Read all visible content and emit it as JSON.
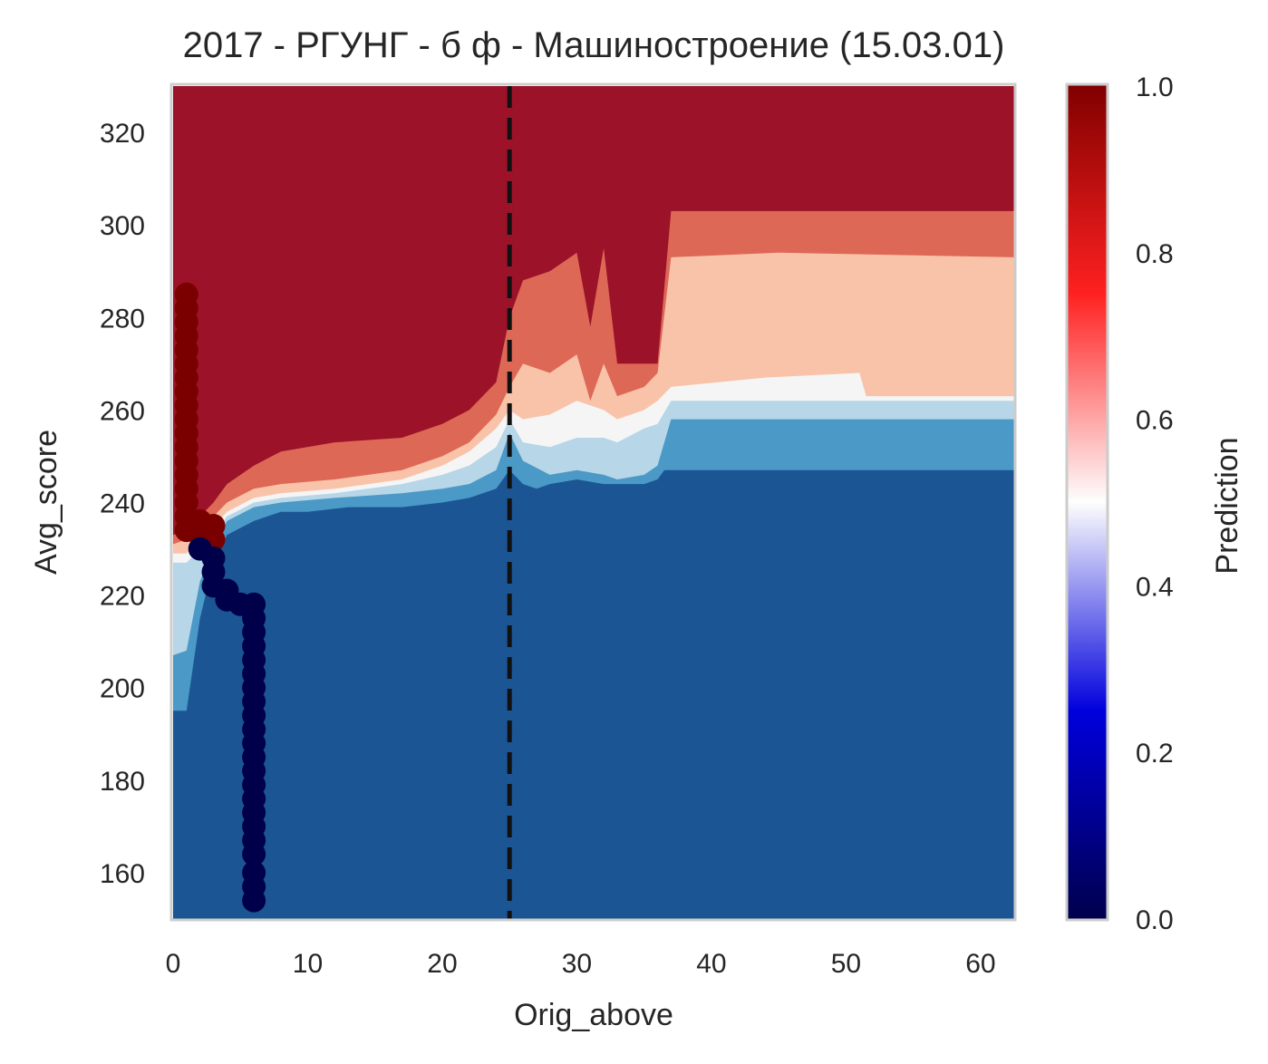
{
  "chart_data": {
    "type": "heatmap",
    "title": "2017 - РГУНГ - б ф - Машиностроение (15.03.01)",
    "xlabel": "Orig_above",
    "ylabel": "Avg_score",
    "xlim": [
      0,
      62.5
    ],
    "ylim": [
      150,
      330
    ],
    "x_ticks": [
      0,
      10,
      20,
      30,
      40,
      50,
      60
    ],
    "y_ticks": [
      160,
      180,
      200,
      220,
      240,
      260,
      280,
      300,
      320
    ],
    "colorbar": {
      "label": "Prediction",
      "colormap": "seismic",
      "range": [
        0,
        1
      ],
      "ticks": [
        "0.0",
        "0.2",
        "0.4",
        "0.6",
        "0.8",
        "1.0"
      ]
    },
    "contour_levels": [
      {
        "range": "0.0-0.15",
        "color": "#1b5594"
      },
      {
        "range": "0.15-0.3",
        "color": "#4a99c6"
      },
      {
        "range": "0.3-0.45",
        "color": "#b7d6e7"
      },
      {
        "range": "0.45-0.55",
        "color": "#f5f5f5"
      },
      {
        "range": "0.55-0.7",
        "color": "#f8c3a9"
      },
      {
        "range": "0.7-0.85",
        "color": "#dd6856"
      },
      {
        "range": "0.85-1.0",
        "color": "#9b1229"
      }
    ],
    "contour_boundaries": [
      {
        "level": 0.15,
        "points": [
          [
            0,
            195
          ],
          [
            1,
            195
          ],
          [
            2,
            215
          ],
          [
            3,
            227
          ],
          [
            4,
            233
          ],
          [
            6,
            236
          ],
          [
            8,
            238
          ],
          [
            10,
            238
          ],
          [
            13,
            239
          ],
          [
            17,
            239
          ],
          [
            20,
            240
          ],
          [
            22,
            241
          ],
          [
            24,
            243
          ],
          [
            25,
            247
          ],
          [
            26,
            244
          ],
          [
            27,
            243
          ],
          [
            28,
            244
          ],
          [
            30,
            245
          ],
          [
            32,
            244
          ],
          [
            33,
            244
          ],
          [
            35,
            244
          ],
          [
            36,
            245
          ],
          [
            36.5,
            247
          ],
          [
            62.5,
            247
          ]
        ]
      },
      {
        "level": 0.3,
        "points": [
          [
            0,
            207
          ],
          [
            1,
            208
          ],
          [
            2,
            223
          ],
          [
            3,
            230
          ],
          [
            4,
            236
          ],
          [
            6,
            239
          ],
          [
            8,
            240
          ],
          [
            12,
            241
          ],
          [
            17,
            242
          ],
          [
            20,
            243
          ],
          [
            22,
            244
          ],
          [
            24,
            247
          ],
          [
            25,
            255
          ],
          [
            26,
            249
          ],
          [
            28,
            246
          ],
          [
            30,
            247
          ],
          [
            32,
            246
          ],
          [
            33,
            245
          ],
          [
            35,
            246
          ],
          [
            36,
            248
          ],
          [
            37,
            258
          ],
          [
            62.5,
            258
          ]
        ]
      },
      {
        "level": 0.45,
        "points": [
          [
            0,
            227
          ],
          [
            1,
            227
          ],
          [
            2,
            230
          ],
          [
            3,
            233
          ],
          [
            4,
            237
          ],
          [
            6,
            240
          ],
          [
            8,
            241
          ],
          [
            12,
            242
          ],
          [
            17,
            244
          ],
          [
            20,
            246
          ],
          [
            22,
            248
          ],
          [
            24,
            252
          ],
          [
            25,
            258
          ],
          [
            26,
            253
          ],
          [
            28,
            252
          ],
          [
            30,
            254
          ],
          [
            32,
            254
          ],
          [
            33,
            253
          ],
          [
            35,
            256
          ],
          [
            36,
            257
          ],
          [
            37,
            262
          ],
          [
            62.5,
            262
          ]
        ]
      },
      {
        "level": 0.55,
        "points": [
          [
            0,
            229
          ],
          [
            1,
            229
          ],
          [
            2,
            232
          ],
          [
            3,
            235
          ],
          [
            4,
            238
          ],
          [
            6,
            241
          ],
          [
            8,
            242
          ],
          [
            12,
            243
          ],
          [
            17,
            245
          ],
          [
            20,
            248
          ],
          [
            22,
            251
          ],
          [
            24,
            256
          ],
          [
            25,
            260
          ],
          [
            26,
            258
          ],
          [
            28,
            259
          ],
          [
            30,
            262
          ],
          [
            32,
            260
          ],
          [
            33,
            258
          ],
          [
            35,
            260
          ],
          [
            36,
            262
          ],
          [
            37,
            265
          ],
          [
            44,
            267
          ],
          [
            51,
            268
          ],
          [
            51.5,
            263
          ],
          [
            62.5,
            263
          ]
        ]
      },
      {
        "level": 0.7,
        "points": [
          [
            0,
            231
          ],
          [
            1,
            232
          ],
          [
            2,
            234
          ],
          [
            3,
            237
          ],
          [
            4,
            240
          ],
          [
            6,
            243
          ],
          [
            8,
            244
          ],
          [
            12,
            245
          ],
          [
            17,
            247
          ],
          [
            20,
            250
          ],
          [
            22,
            253
          ],
          [
            24,
            259
          ],
          [
            25,
            265
          ],
          [
            26,
            270
          ],
          [
            28,
            268
          ],
          [
            30,
            272
          ],
          [
            31,
            262
          ],
          [
            32,
            270
          ],
          [
            33,
            263
          ],
          [
            35,
            265
          ],
          [
            36,
            268
          ],
          [
            37,
            293
          ],
          [
            45,
            294
          ],
          [
            62.5,
            293
          ]
        ]
      },
      {
        "level": 0.85,
        "points": [
          [
            0,
            233
          ],
          [
            1,
            234
          ],
          [
            2,
            237
          ],
          [
            3,
            240
          ],
          [
            4,
            244
          ],
          [
            6,
            248
          ],
          [
            8,
            251
          ],
          [
            12,
            253
          ],
          [
            17,
            254
          ],
          [
            20,
            257
          ],
          [
            22,
            260
          ],
          [
            24,
            266
          ],
          [
            25,
            280
          ],
          [
            26,
            288
          ],
          [
            28,
            290
          ],
          [
            30,
            294
          ],
          [
            31,
            278
          ],
          [
            32,
            295
          ],
          [
            33,
            270
          ],
          [
            36,
            270
          ],
          [
            37,
            303
          ],
          [
            62.5,
            303
          ]
        ]
      }
    ],
    "vline": {
      "x": 25,
      "style": "dashed",
      "color": "#111111"
    },
    "series": [
      {
        "name": "",
        "color": "#7a0000",
        "points": [
          [
            1,
            285
          ],
          [
            1,
            282
          ],
          [
            1,
            279
          ],
          [
            1,
            276
          ],
          [
            1,
            273
          ],
          [
            1,
            270
          ],
          [
            1,
            267
          ],
          [
            1,
            264
          ],
          [
            1,
            261
          ],
          [
            1,
            258
          ],
          [
            1,
            255
          ],
          [
            1,
            252
          ],
          [
            1,
            249
          ],
          [
            1,
            246
          ],
          [
            1,
            243
          ],
          [
            1,
            240
          ],
          [
            1,
            237
          ],
          [
            1,
            234
          ],
          [
            2,
            236
          ],
          [
            2,
            233
          ],
          [
            3,
            235
          ],
          [
            3,
            232
          ]
        ]
      },
      {
        "name": "",
        "color": "#00004a",
        "points": [
          [
            2,
            230
          ],
          [
            3,
            228
          ],
          [
            3,
            225
          ],
          [
            3,
            222
          ],
          [
            4,
            221
          ],
          [
            4,
            219
          ],
          [
            5,
            218
          ],
          [
            6,
            218
          ],
          [
            6,
            215
          ],
          [
            6,
            212
          ],
          [
            6,
            209
          ],
          [
            6,
            206
          ],
          [
            6,
            203
          ],
          [
            6,
            200
          ],
          [
            6,
            197
          ],
          [
            6,
            194
          ],
          [
            6,
            191
          ],
          [
            6,
            188
          ],
          [
            6,
            185
          ],
          [
            6,
            182
          ],
          [
            6,
            179
          ],
          [
            6,
            176
          ],
          [
            6,
            173
          ],
          [
            6,
            170
          ],
          [
            6,
            167
          ],
          [
            6,
            164
          ],
          [
            6,
            160
          ],
          [
            6,
            157
          ],
          [
            6,
            154
          ]
        ]
      }
    ]
  }
}
